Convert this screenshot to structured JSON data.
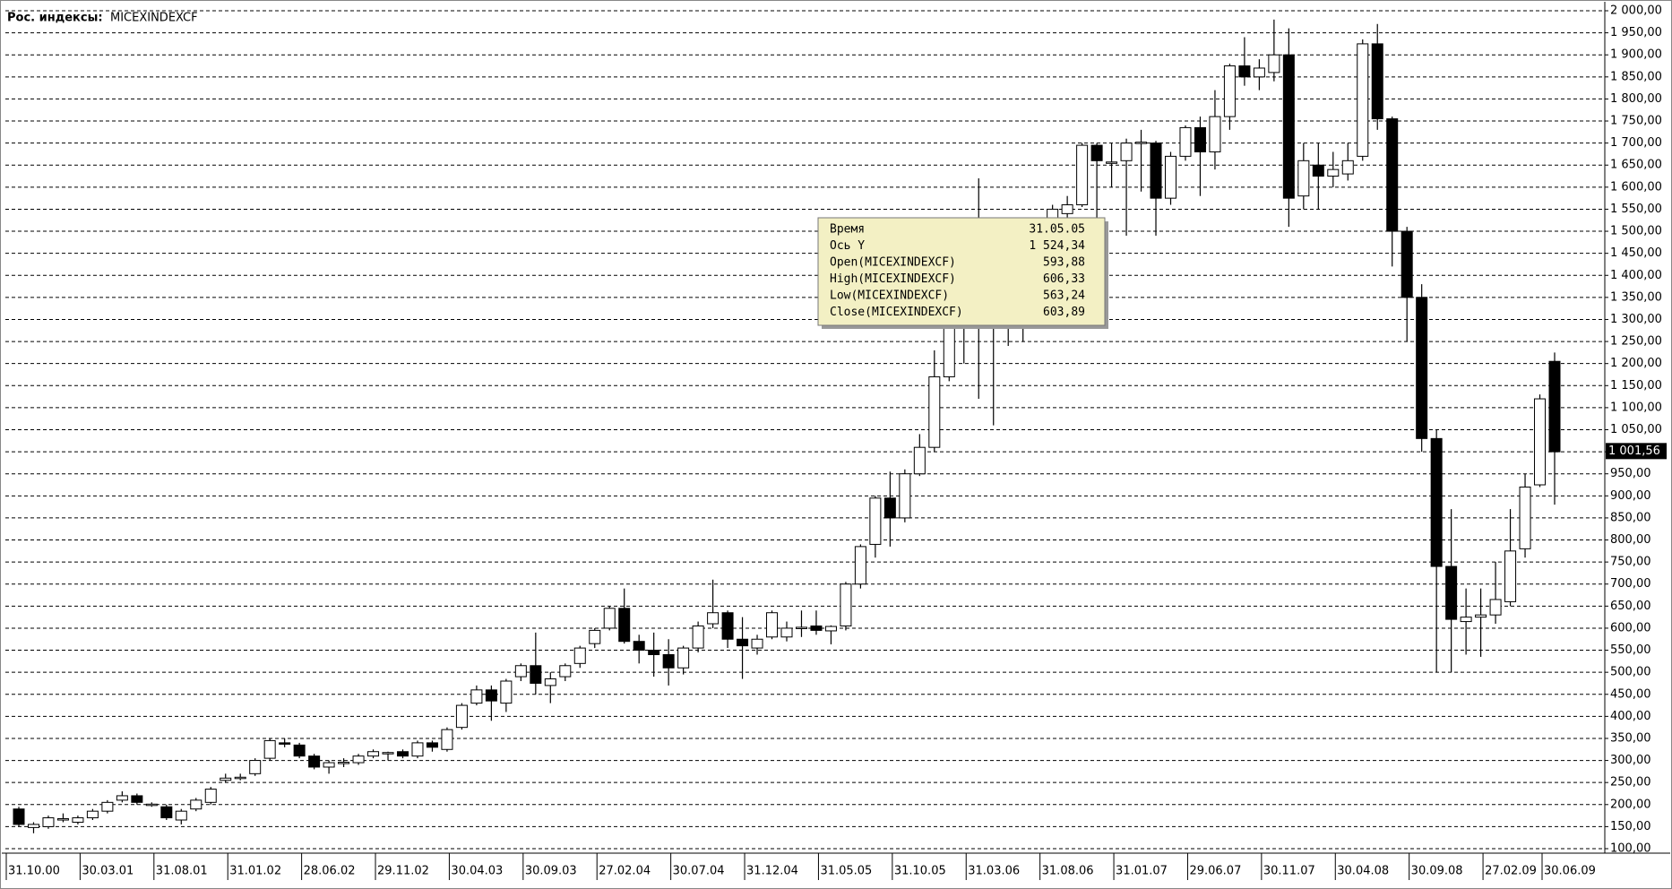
{
  "chart_data": {
    "type": "candlestick",
    "title_prefix": "Рос. индексы:",
    "title": "MICEXINDEXCF",
    "up_color": "#ffffff",
    "down_color": "#000000",
    "grid": true,
    "ylim": [
      100,
      2000
    ],
    "yticks": [
      {
        "value": 100,
        "label": "100,00"
      },
      {
        "value": 150,
        "label": "150,00"
      },
      {
        "value": 200,
        "label": "200,00"
      },
      {
        "value": 250,
        "label": "250,00"
      },
      {
        "value": 300,
        "label": "300,00"
      },
      {
        "value": 350,
        "label": "350,00"
      },
      {
        "value": 400,
        "label": "400,00"
      },
      {
        "value": 450,
        "label": "450,00"
      },
      {
        "value": 500,
        "label": "500,00"
      },
      {
        "value": 550,
        "label": "550,00"
      },
      {
        "value": 600,
        "label": "600,00"
      },
      {
        "value": 650,
        "label": "650,00"
      },
      {
        "value": 700,
        "label": "700,00"
      },
      {
        "value": 750,
        "label": "750,00"
      },
      {
        "value": 800,
        "label": "800,00"
      },
      {
        "value": 850,
        "label": "850,00"
      },
      {
        "value": 900,
        "label": "900,00"
      },
      {
        "value": 950,
        "label": "950,00"
      },
      {
        "value": 1000,
        "label": "1 000,00"
      },
      {
        "value": 1050,
        "label": "1 050,00"
      },
      {
        "value": 1100,
        "label": "1 100,00"
      },
      {
        "value": 1150,
        "label": "1 150,00"
      },
      {
        "value": 1200,
        "label": "1 200,00"
      },
      {
        "value": 1250,
        "label": "1 250,00"
      },
      {
        "value": 1300,
        "label": "1 300,00"
      },
      {
        "value": 1350,
        "label": "1 350,00"
      },
      {
        "value": 1400,
        "label": "1 400,00"
      },
      {
        "value": 1450,
        "label": "1 450,00"
      },
      {
        "value": 1500,
        "label": "1 500,00"
      },
      {
        "value": 1550,
        "label": "1 550,00"
      },
      {
        "value": 1600,
        "label": "1 600,00"
      },
      {
        "value": 1650,
        "label": "1 650,00"
      },
      {
        "value": 1700,
        "label": "1 700,00"
      },
      {
        "value": 1750,
        "label": "1 750,00"
      },
      {
        "value": 1800,
        "label": "1 800,00"
      },
      {
        "value": 1850,
        "label": "1 850,00"
      },
      {
        "value": 1900,
        "label": "1 900,00"
      },
      {
        "value": 1950,
        "label": "1 950,00"
      },
      {
        "value": 2000,
        "label": "2 000,00"
      }
    ],
    "last_price": {
      "value": 1001.56,
      "label": "1 001,56"
    },
    "categories": [
      "31.10.00",
      null,
      null,
      null,
      null,
      "30.03.01",
      null,
      null,
      null,
      null,
      "31.08.01",
      null,
      null,
      null,
      null,
      "31.01.02",
      null,
      null,
      null,
      null,
      "28.06.02",
      null,
      null,
      null,
      null,
      "29.11.02",
      null,
      null,
      null,
      null,
      "30.04.03",
      null,
      null,
      null,
      null,
      "30.09.03",
      null,
      null,
      null,
      null,
      "27.02.04",
      null,
      null,
      null,
      null,
      "30.07.04",
      null,
      null,
      null,
      null,
      "31.12.04",
      null,
      null,
      null,
      null,
      "31.05.05",
      null,
      null,
      null,
      null,
      "31.10.05",
      null,
      null,
      null,
      null,
      "31.03.06",
      null,
      null,
      null,
      null,
      "31.08.06",
      null,
      null,
      null,
      null,
      "31.01.07",
      null,
      null,
      null,
      null,
      "29.06.07",
      null,
      null,
      null,
      null,
      "30.11.07",
      null,
      null,
      null,
      null,
      "30.04.08",
      null,
      null,
      null,
      null,
      "30.09.08",
      null,
      null,
      null,
      null,
      "27.02.09",
      null,
      null,
      null,
      "30.06.09"
    ],
    "open": [
      190,
      148,
      150,
      165,
      160,
      170,
      185,
      210,
      220,
      200,
      195,
      165,
      190,
      205,
      255,
      260,
      270,
      305,
      340,
      335,
      310,
      285,
      295,
      295,
      310,
      315,
      320,
      310,
      340,
      325,
      375,
      430,
      460,
      430,
      490,
      515,
      470,
      490,
      520,
      565,
      600,
      645,
      570,
      550,
      540,
      510,
      555,
      610,
      635,
      575,
      555,
      580,
      580,
      600,
      605,
      593.88,
      605,
      700,
      790,
      895,
      850,
      950,
      1010,
      1170,
      1400,
      1500,
      1350,
      1300,
      1350,
      1420,
      1500,
      1540,
      1560,
      1695,
      1655,
      1660,
      1700,
      1700,
      1575,
      1670,
      1735,
      1680,
      1760,
      1875,
      1850,
      1860,
      1900,
      1580,
      1650,
      1625,
      1630,
      1670,
      1925,
      1755,
      1500,
      1350,
      1030,
      740,
      615,
      625,
      630,
      660,
      780,
      925,
      1205
    ],
    "high": [
      195,
      160,
      175,
      180,
      175,
      190,
      210,
      230,
      225,
      205,
      200,
      190,
      215,
      240,
      270,
      270,
      305,
      350,
      350,
      340,
      315,
      300,
      305,
      315,
      325,
      320,
      325,
      345,
      345,
      375,
      430,
      470,
      470,
      485,
      520,
      590,
      500,
      520,
      560,
      600,
      650,
      690,
      585,
      590,
      575,
      560,
      615,
      710,
      640,
      625,
      585,
      640,
      615,
      640,
      640,
      606.33,
      705,
      790,
      900,
      955,
      960,
      1040,
      1230,
      1420,
      1500,
      1620,
      1450,
      1400,
      1450,
      1500,
      1560,
      1580,
      1700,
      1700,
      1700,
      1710,
      1730,
      1705,
      1680,
      1740,
      1760,
      1820,
      1880,
      1940,
      1890,
      1980,
      1960,
      1700,
      1700,
      1680,
      1700,
      1935,
      1970,
      1760,
      1510,
      1380,
      1050,
      870,
      690,
      690,
      750,
      870,
      950,
      1130,
      1225
    ],
    "low": [
      150,
      135,
      145,
      160,
      155,
      165,
      180,
      205,
      200,
      195,
      165,
      155,
      185,
      200,
      250,
      255,
      265,
      300,
      330,
      305,
      280,
      270,
      285,
      290,
      305,
      300,
      305,
      305,
      320,
      320,
      370,
      425,
      390,
      410,
      480,
      450,
      430,
      480,
      510,
      555,
      595,
      565,
      520,
      490,
      470,
      495,
      545,
      600,
      555,
      485,
      540,
      575,
      570,
      580,
      585,
      563.24,
      595,
      690,
      760,
      785,
      840,
      945,
      1000,
      1160,
      1200,
      1120,
      1060,
      1240,
      1250,
      1280,
      1450,
      1510,
      1555,
      1530,
      1600,
      1490,
      1590,
      1490,
      1560,
      1660,
      1580,
      1640,
      1730,
      1830,
      1820,
      1840,
      1510,
      1550,
      1550,
      1600,
      1615,
      1660,
      1730,
      1420,
      1250,
      1000,
      500,
      500,
      540,
      535,
      610,
      650,
      760,
      920,
      880
    ],
    "close": [
      155,
      155,
      170,
      168,
      170,
      185,
      205,
      220,
      205,
      201,
      170,
      185,
      210,
      235,
      260,
      262,
      300,
      345,
      338,
      310,
      285,
      295,
      296,
      310,
      320,
      318,
      310,
      340,
      330,
      370,
      425,
      460,
      435,
      480,
      515,
      475,
      485,
      515,
      555,
      595,
      645,
      570,
      550,
      540,
      510,
      555,
      605,
      635,
      575,
      560,
      575,
      635,
      600,
      602,
      595,
      603.89,
      700,
      785,
      895,
      850,
      950,
      1010,
      1170,
      1400,
      1480,
      1350,
      1300,
      1350,
      1420,
      1480,
      1550,
      1560,
      1695,
      1660,
      1657,
      1700,
      1702,
      1575,
      1670,
      1735,
      1680,
      1760,
      1875,
      1850,
      1870,
      1900,
      1575,
      1660,
      1625,
      1640,
      1660,
      1925,
      1755,
      1500,
      1350,
      1030,
      740,
      620,
      625,
      630,
      665,
      775,
      920,
      1120,
      1000
    ],
    "tooltip": {
      "rows": [
        [
          "Время",
          "31.05.05"
        ],
        [
          "Ось Y",
          "1 524,34"
        ],
        [
          "Open(MICEXINDEXCF)",
          "593,88"
        ],
        [
          "High(MICEXINDEXCF)",
          "606,33"
        ],
        [
          "Low(MICEXINDEXCF)",
          "563,24"
        ],
        [
          "Close(MICEXINDEXCF)",
          "603,89"
        ]
      ]
    }
  }
}
